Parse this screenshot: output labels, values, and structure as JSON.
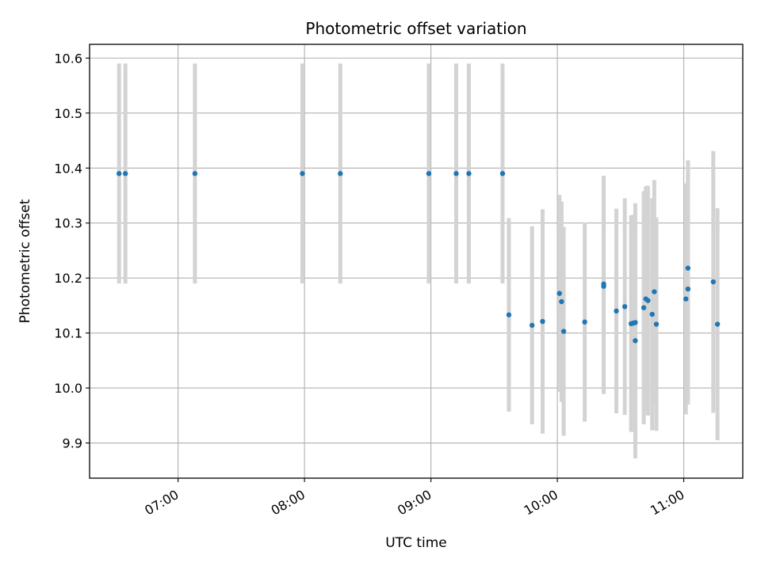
{
  "chart_data": {
    "type": "scatter",
    "title": "Photometric offset variation",
    "xlabel": "UTC time",
    "ylabel": "Photometric offset",
    "x_ticks": [
      "07:00",
      "08:00",
      "09:00",
      "10:00",
      "11:00"
    ],
    "y_ticks": [
      "9.9",
      "10.0",
      "10.1",
      "10.2",
      "10.3",
      "10.4",
      "10.5",
      "10.6"
    ],
    "xlim": [
      "06:18",
      "11:28"
    ],
    "ylim": [
      9.836,
      10.625
    ],
    "grid": true,
    "colors": {
      "point": "#1f77b4",
      "errorbar": "#d3d3d3",
      "grid": "#b0b0b0"
    },
    "points": [
      {
        "x": "06:32",
        "y": 10.39,
        "err": 0.2
      },
      {
        "x": "06:35",
        "y": 10.39,
        "err": 0.2
      },
      {
        "x": "07:08",
        "y": 10.39,
        "err": 0.2
      },
      {
        "x": "07:59",
        "y": 10.39,
        "err": 0.2
      },
      {
        "x": "08:17",
        "y": 10.39,
        "err": 0.2
      },
      {
        "x": "08:59",
        "y": 10.39,
        "err": 0.2
      },
      {
        "x": "09:12",
        "y": 10.39,
        "err": 0.2
      },
      {
        "x": "09:18",
        "y": 10.39,
        "err": 0.2
      },
      {
        "x": "09:34",
        "y": 10.39,
        "err": 0.2
      },
      {
        "x": "09:37",
        "y": 10.133,
        "err": 0.176
      },
      {
        "x": "09:48",
        "y": 10.114,
        "err": 0.18
      },
      {
        "x": "09:53",
        "y": 10.121,
        "err": 0.204
      },
      {
        "x": "10:01",
        "y": 10.172,
        "err": 0.179
      },
      {
        "x": "10:02",
        "y": 10.157,
        "err": 0.182
      },
      {
        "x": "10:03",
        "y": 10.103,
        "err": 0.19
      },
      {
        "x": "10:13",
        "y": 10.12,
        "err": 0.181
      },
      {
        "x": "10:22",
        "y": 10.189,
        "err": 0.197
      },
      {
        "x": "10:22",
        "y": 10.185,
        "err": 0.196
      },
      {
        "x": "10:28",
        "y": 10.14,
        "err": 0.186
      },
      {
        "x": "10:32",
        "y": 10.148,
        "err": 0.197
      },
      {
        "x": "10:35",
        "y": 10.117,
        "err": 0.197
      },
      {
        "x": "10:36",
        "y": 10.118,
        "err": 0.197
      },
      {
        "x": "10:37",
        "y": 10.086,
        "err": 0.214
      },
      {
        "x": "10:37",
        "y": 10.119,
        "err": 0.217
      },
      {
        "x": "10:41",
        "y": 10.146,
        "err": 0.212
      },
      {
        "x": "10:42",
        "y": 10.162,
        "err": 0.205
      },
      {
        "x": "10:43",
        "y": 10.159,
        "err": 0.209
      },
      {
        "x": "10:45",
        "y": 10.134,
        "err": 0.211
      },
      {
        "x": "10:46",
        "y": 10.175,
        "err": 0.203
      },
      {
        "x": "10:47",
        "y": 10.116,
        "err": 0.194
      },
      {
        "x": "11:01",
        "y": 10.162,
        "err": 0.21
      },
      {
        "x": "11:02",
        "y": 10.18,
        "err": 0.21
      },
      {
        "x": "11:02",
        "y": 10.218,
        "err": 0.196
      },
      {
        "x": "11:14",
        "y": 10.193,
        "err": 0.238
      },
      {
        "x": "11:16",
        "y": 10.116,
        "err": 0.211
      }
    ]
  }
}
